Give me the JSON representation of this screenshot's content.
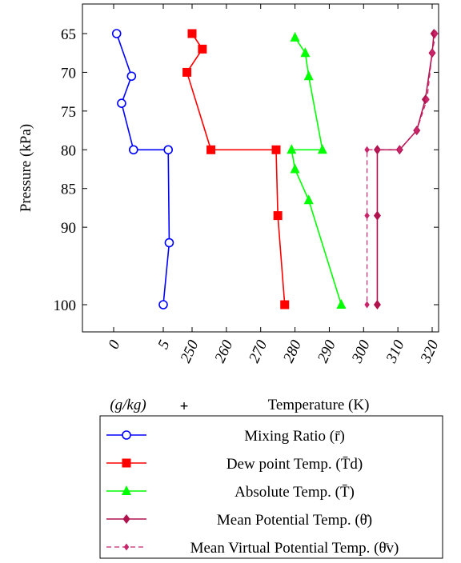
{
  "chart_data": {
    "type": "line",
    "title": "",
    "ylabel": "Pressure (kPa)",
    "y_axis": {
      "ticks": [
        65,
        70,
        75,
        80,
        85,
        90,
        100
      ],
      "reversed": true
    },
    "x_axis_mixing": {
      "unit_label": "(g/kg)",
      "ticks": [
        0,
        5
      ]
    },
    "x_axis_temperature": {
      "label": "Temperature (K)",
      "ticks": [
        250,
        260,
        270,
        280,
        290,
        300,
        310,
        320
      ]
    },
    "joiner": "+",
    "grid": false,
    "legend_position": "bottom",
    "series": [
      {
        "name": "Mixing Ratio (r̄)",
        "axis": "mixing",
        "color": "#0000ff",
        "marker": "circle-open",
        "dash": "solid",
        "x": [
          0.3,
          1.8,
          0.8,
          2.0,
          5.5,
          5.6,
          5.0
        ],
        "y": [
          65,
          70.5,
          74,
          80,
          80,
          92,
          100
        ]
      },
      {
        "name": "Dew point Temp. (T̄d)",
        "axis": "temperature",
        "color": "#ff0000",
        "marker": "square",
        "dash": "solid",
        "x": [
          250,
          253,
          248.5,
          255.5,
          274.5,
          275,
          277
        ],
        "y": [
          65,
          67,
          70,
          80,
          80,
          88.5,
          100
        ]
      },
      {
        "name": "Absolute Temp. (T̄)",
        "axis": "temperature",
        "color": "#00ff00",
        "marker": "triangle",
        "dash": "solid",
        "x": [
          280,
          283,
          284,
          288,
          279,
          280,
          284,
          293.5
        ],
        "y": [
          65.5,
          67.5,
          70.5,
          80,
          80,
          82.5,
          86.5,
          100
        ]
      },
      {
        "name": "Mean Potential Temp. (θ̄)",
        "axis": "temperature",
        "color": "#b0124e",
        "marker": "diamond",
        "dash": "solid",
        "x": [
          320.5,
          320,
          318,
          315.5,
          310.5,
          304,
          304,
          304
        ],
        "y": [
          65,
          67.5,
          73.5,
          77.5,
          80,
          80,
          88.5,
          100
        ]
      },
      {
        "name": "Mean Virtual Potential Temp. (θ̄v)",
        "axis": "temperature",
        "color": "#c8256a",
        "marker": "diamond-small",
        "dash": "dashed",
        "x": [
          321,
          320,
          318.5,
          315.5,
          310.5,
          301,
          301,
          301
        ],
        "y": [
          65,
          67.5,
          73.5,
          77.5,
          80,
          80,
          88.5,
          100
        ]
      }
    ]
  }
}
